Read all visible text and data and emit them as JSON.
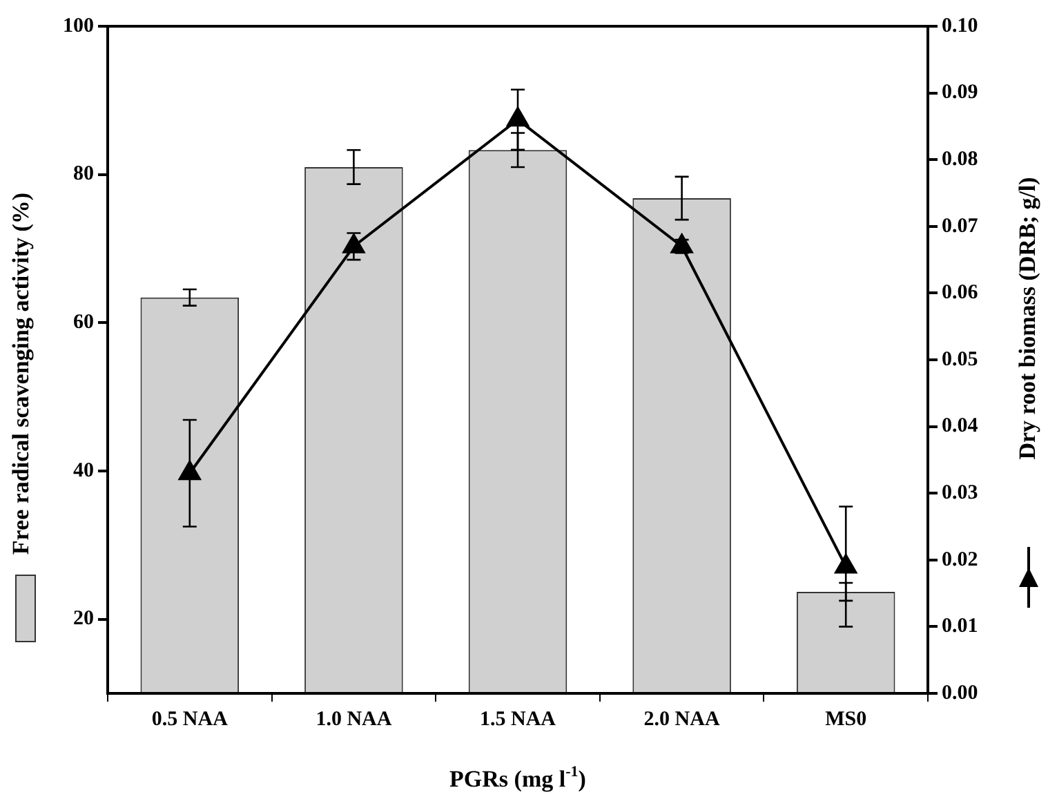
{
  "chart_data": {
    "type": "bar",
    "xlabel": "PGRs (mg l$^{-1}$)",
    "ylabel": "Free radical scavenging activity (%)",
    "y2label": "Dry root biomass (DRB; g/l)",
    "categories": [
      "0.5 NAA",
      "1.0 NAA",
      "1.5 NAA",
      "2.0 NAA",
      "MS0"
    ],
    "series": [
      {
        "color": "#d0d0d0",
        "values": [
          63.4,
          81,
          83.3,
          76.8,
          23.7
        ],
        "errors": [
          1.1,
          2.3,
          2.3,
          2.9,
          1.2
        ]
      },
      {
        "type": "line",
        "axis": "y2",
        "color": "#000000",
        "marker": "triangle",
        "values": [
          0.033,
          0.067,
          0.086,
          0.067,
          0.019
        ],
        "errors": [
          0.008,
          0.002,
          0.0045,
          0.001,
          0.009
        ]
      }
    ],
    "ylim": [
      10,
      100
    ],
    "yticks": [
      20,
      40,
      60,
      80,
      100
    ],
    "y2lim": [
      0,
      0.1
    ],
    "y2ticks": [
      {
        "value": 0,
        "label": "0.00"
      },
      0.01,
      0.02,
      0.03,
      0.04,
      0.05,
      0.06,
      0.07,
      0.08,
      0.09,
      {
        "value": 0.1,
        "label": "0.10"
      }
    ],
    "grid": false,
    "legend": false
  }
}
